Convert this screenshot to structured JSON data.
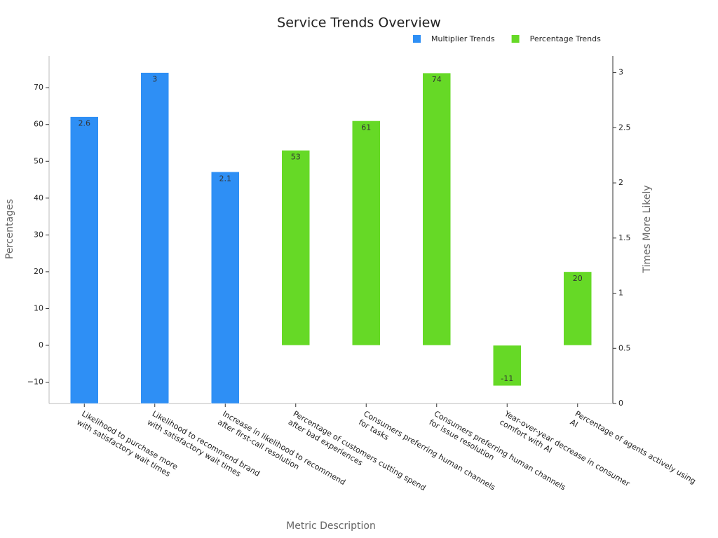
{
  "chart_data": {
    "type": "bar",
    "title": "Service Trends Overview",
    "x_label": "Metric Description",
    "y_label": "Percentages",
    "y2_label": "Times More Likely",
    "categories": [
      [
        "Likelihood to purchase more",
        "with satisfactory wait times"
      ],
      [
        "Likelihood to recommend brand",
        "with satisfactory wait times"
      ],
      [
        "Increase in likelihood to recommend",
        "after first-call resolution"
      ],
      [
        "Percentage of customers cutting spend",
        "after bad experiences"
      ],
      [
        "Consumers preferring human channels",
        "for tasks"
      ],
      [
        "Consumers preferring human channels",
        "for issue resolution"
      ],
      [
        "Year-over-year decrease in consumer",
        "comfort with AI"
      ],
      [
        "Percentage of agents actively using",
        "AI"
      ]
    ],
    "series": [
      {
        "name": "Multiplier Trends",
        "color": "#2e8ff5",
        "axis": "y2",
        "values": [
          2.6,
          3,
          2.1,
          null,
          null,
          null,
          null,
          null
        ]
      },
      {
        "name": "Percentage Trends",
        "color": "#66d926",
        "values": [
          null,
          null,
          null,
          53,
          61,
          74,
          -11,
          20
        ]
      }
    ],
    "ylim": [
      -15.8,
      78.6
    ],
    "yticks": [
      {
        "value": -10,
        "label": "−10"
      },
      0,
      10,
      20,
      30,
      40,
      50,
      60,
      70
    ],
    "y2lim": [
      0,
      3.15
    ],
    "y2ticks": [
      0,
      0.5,
      1,
      1.5,
      2,
      2.5,
      3
    ],
    "legend": "top-right"
  }
}
